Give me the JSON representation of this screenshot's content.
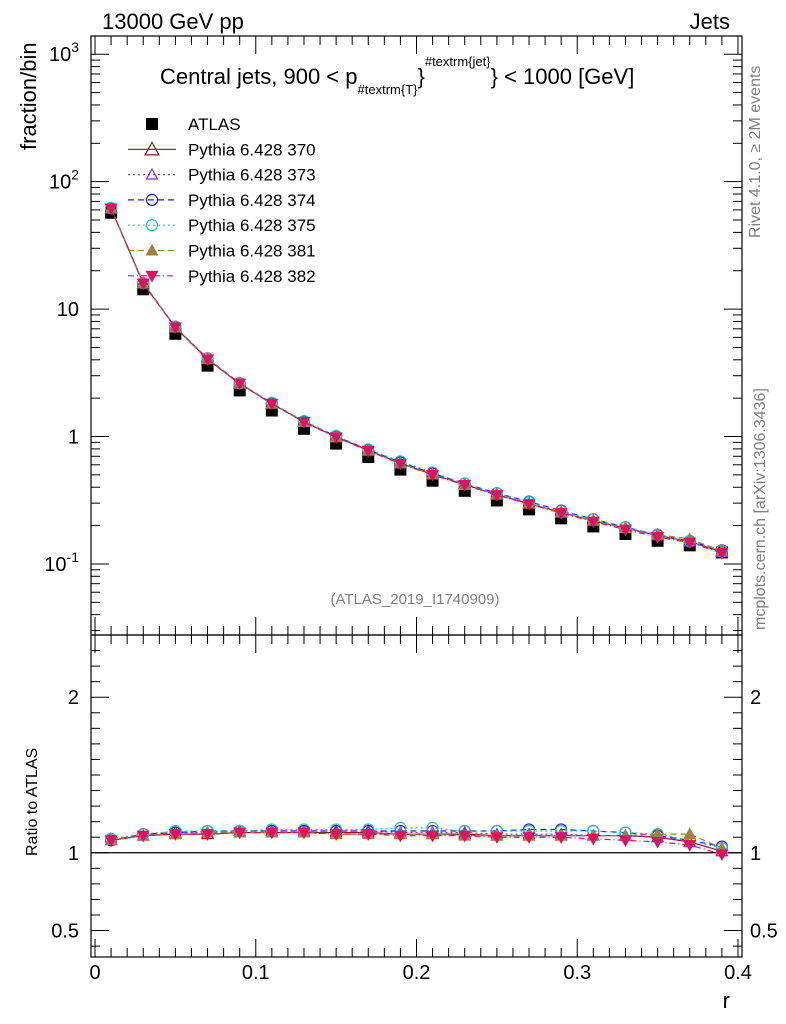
{
  "header": {
    "left": "13000 GeV pp",
    "right": "Jets"
  },
  "side_labels": {
    "upper": "Rivet 4.1.0, ≥ 2M events",
    "lower": "mcplots.cern.ch [arXiv:1306.3436]"
  },
  "chart_data": {
    "type": "line",
    "title": "Central jets, 900 < p_{#textrm{T}}^{#textrm{jet}} < 1000 [GeV]",
    "title_parts": {
      "pre": "Central jets, 900 < p",
      "sub": "#textrm{T}",
      "brace": "}",
      "sup": "#textrm{jet}",
      "post": "} < 1000 [GeV]"
    },
    "analysis": "(ATLAS_2019_I1740909)",
    "xlabel": "r",
    "ylabel": "fraction/bin",
    "ratio_ylabel": "Ratio to ATLAS",
    "xlim": [
      -0.0025,
      0.4025
    ],
    "ylim": [
      0.0277,
      1390
    ],
    "ratio_ylim": [
      0.33,
      2.4
    ],
    "x_ticks": [
      "0",
      "0.1",
      "0.2",
      "0.3",
      "0.4"
    ],
    "y_ticks": [
      "10^{-1}",
      "1",
      "10",
      "10^{2}",
      "10^{3}"
    ],
    "ratio_ticks": [
      "0.5",
      "1",
      "2"
    ],
    "x": [
      0.01,
      0.03,
      0.05,
      0.07,
      0.09,
      0.11,
      0.13,
      0.15,
      0.17,
      0.19,
      0.21,
      0.23,
      0.25,
      0.27,
      0.29,
      0.31,
      0.33,
      0.35,
      0.37,
      0.39
    ],
    "data": {
      "name": "ATLAS",
      "values": [
        57,
        14.3,
        6.4,
        3.6,
        2.3,
        1.6,
        1.15,
        0.88,
        0.69,
        0.55,
        0.45,
        0.375,
        0.315,
        0.268,
        0.228,
        0.197,
        0.172,
        0.152,
        0.14,
        0.123
      ]
    },
    "series": [
      {
        "name": "Pythia 6.428 370",
        "color": "#8b1a1a",
        "marker": "triangle-open",
        "dash": "",
        "ratio": [
          1.08,
          1.11,
          1.12,
          1.12,
          1.13,
          1.13,
          1.13,
          1.13,
          1.13,
          1.12,
          1.12,
          1.12,
          1.11,
          1.11,
          1.11,
          1.11,
          1.11,
          1.1,
          1.07,
          1.01
        ]
      },
      {
        "name": "Pythia 6.428 373",
        "color": "#8a2be2",
        "marker": "triangle-open",
        "dash": "2,3",
        "ratio": [
          1.08,
          1.11,
          1.13,
          1.13,
          1.14,
          1.14,
          1.14,
          1.14,
          1.14,
          1.13,
          1.13,
          1.13,
          1.12,
          1.12,
          1.12,
          1.11,
          1.11,
          1.1,
          1.07,
          1.01
        ]
      },
      {
        "name": "Pythia 6.428 374",
        "color": "#1a1ae6",
        "marker": "circle-open",
        "dash": "6,4",
        "ratio": [
          1.08,
          1.12,
          1.13,
          1.14,
          1.14,
          1.14,
          1.14,
          1.14,
          1.14,
          1.14,
          1.14,
          1.14,
          1.14,
          1.15,
          1.15,
          1.14,
          1.13,
          1.11,
          1.08,
          1.04
        ]
      },
      {
        "name": "Pythia 6.428 375",
        "color": "#20c0c0",
        "marker": "circle-open",
        "dash": "2,3",
        "ratio": [
          1.09,
          1.12,
          1.14,
          1.14,
          1.14,
          1.15,
          1.15,
          1.15,
          1.15,
          1.16,
          1.16,
          1.14,
          1.14,
          1.14,
          1.14,
          1.14,
          1.13,
          1.12,
          1.08,
          1.03
        ]
      },
      {
        "name": "Pythia 6.428 381",
        "color": "#a57f3f",
        "marker": "triangle-filled",
        "dash": "6,4",
        "ratio": [
          1.08,
          1.11,
          1.12,
          1.13,
          1.13,
          1.13,
          1.13,
          1.12,
          1.12,
          1.12,
          1.12,
          1.11,
          1.11,
          1.11,
          1.11,
          1.11,
          1.11,
          1.12,
          1.12,
          1.03
        ]
      },
      {
        "name": "Pythia 6.428 382",
        "color": "#e0115f",
        "marker": "triangle-down-filled",
        "dash": "6,3,1,3",
        "ratio": [
          1.08,
          1.11,
          1.12,
          1.12,
          1.13,
          1.13,
          1.13,
          1.12,
          1.12,
          1.11,
          1.11,
          1.11,
          1.1,
          1.1,
          1.1,
          1.09,
          1.08,
          1.07,
          1.05,
          0.99
        ]
      }
    ]
  }
}
